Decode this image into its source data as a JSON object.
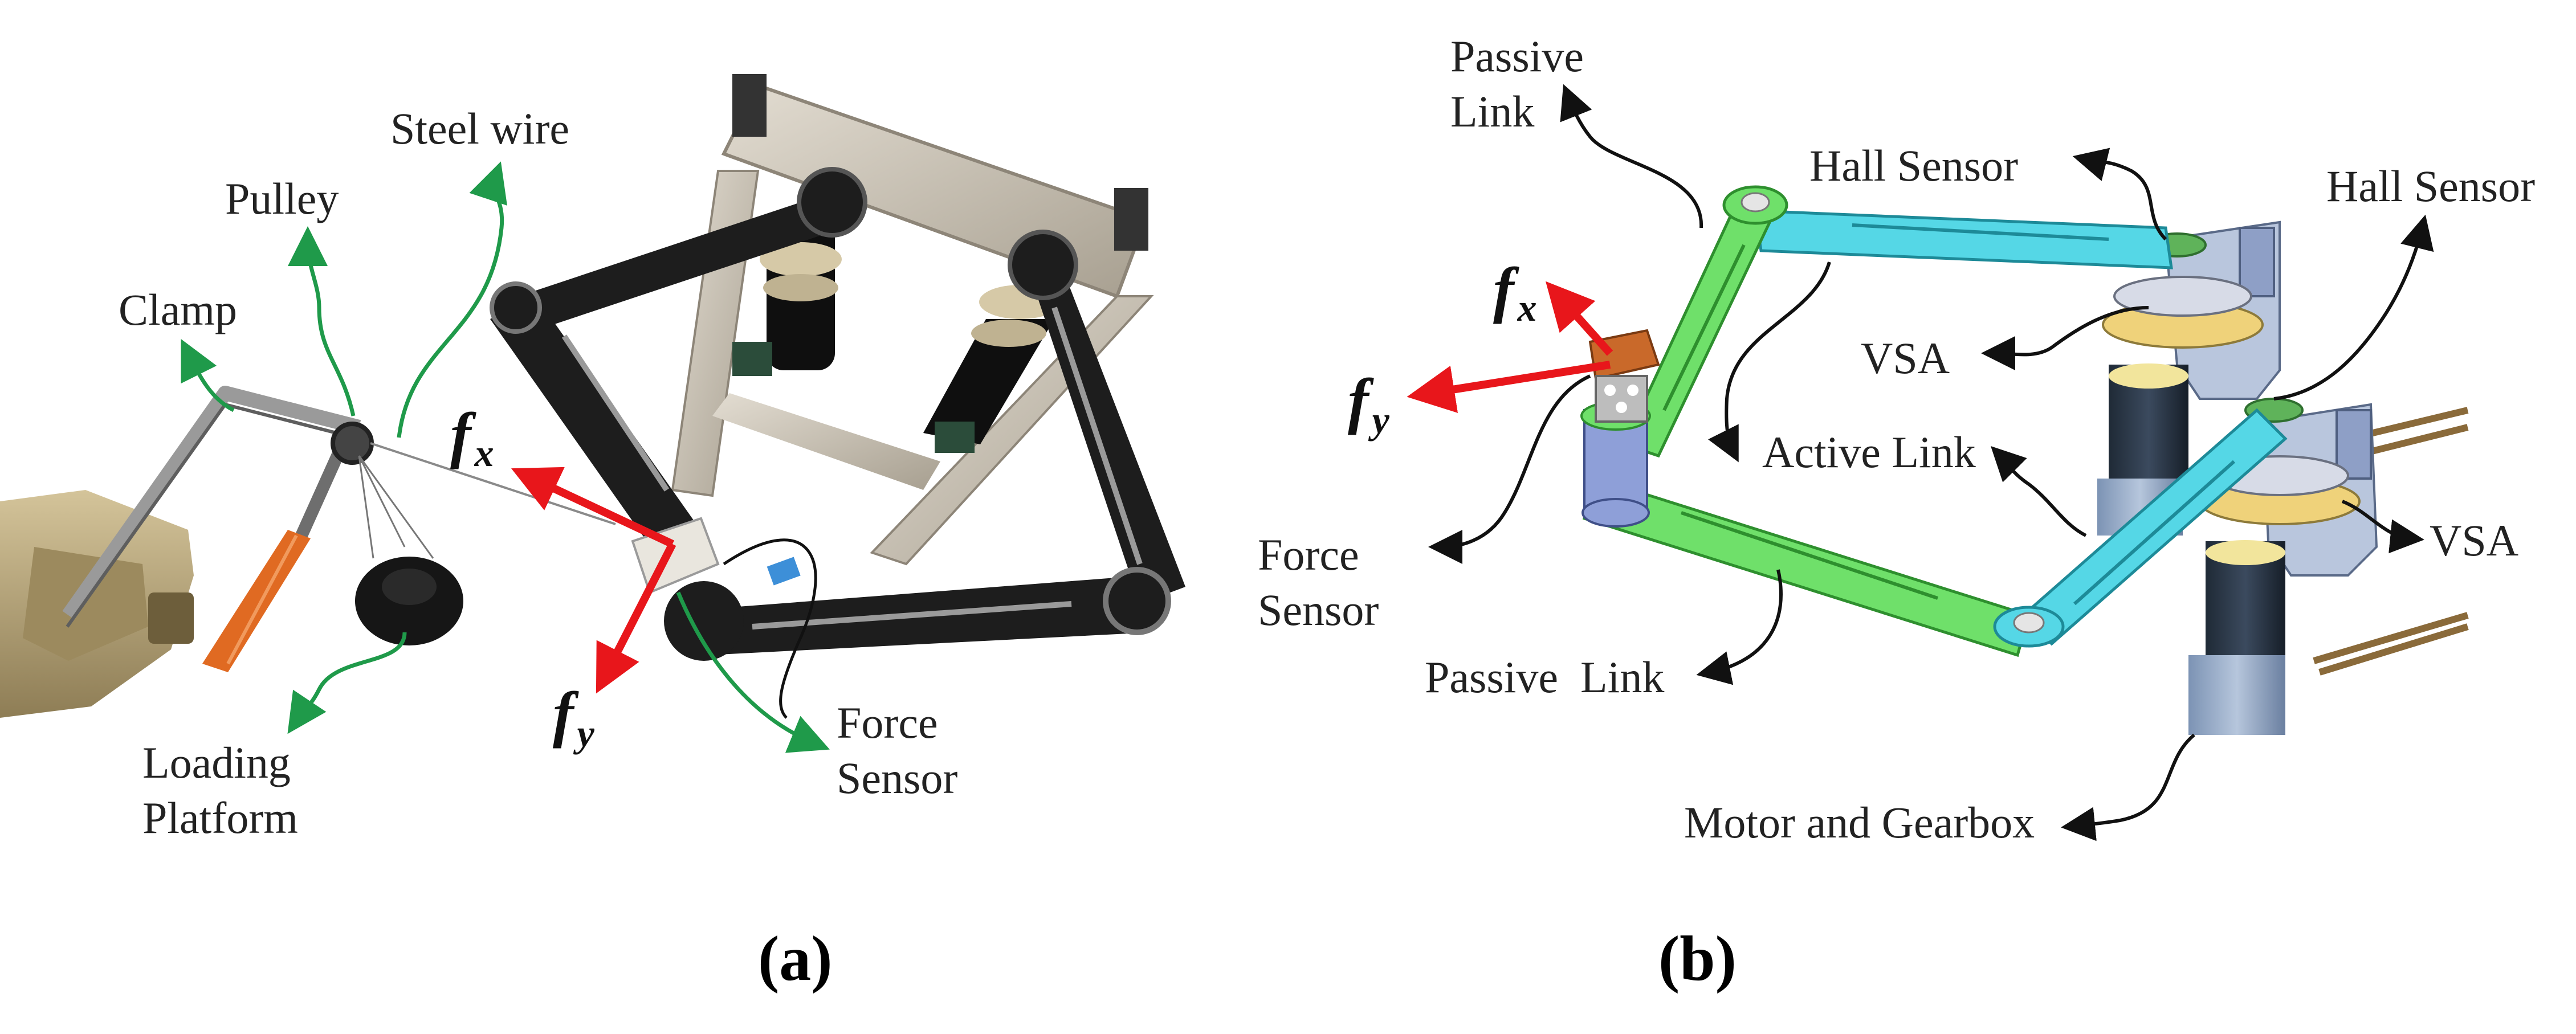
{
  "panel_a": {
    "caption": "(a)",
    "labels": {
      "steel_wire": "Steel wire",
      "pulley": "Pulley",
      "clamp": "Clamp",
      "loading_platform_1": "Loading",
      "loading_platform_2": "Platform",
      "force_sensor_1": "Force",
      "force_sensor_2": "Sensor"
    },
    "force_x": {
      "base": "f",
      "sub": "x"
    },
    "force_y": {
      "base": "f",
      "sub": "y"
    }
  },
  "panel_b": {
    "caption": "(b)",
    "labels": {
      "passive_link_top_1": "Passive",
      "passive_link_top_2": "Link",
      "hall_sensor_left": "Hall Sensor",
      "hall_sensor_right": "Hall Sensor",
      "vsa_left": "VSA",
      "vsa_right": "VSA",
      "active_link": "Active Link",
      "force_sensor_1": "Force",
      "force_sensor_2": "Sensor",
      "passive_link_bottom": "Passive  Link",
      "motor_gearbox": "Motor and Gearbox"
    },
    "force_x": {
      "base": "f",
      "sub": "x"
    },
    "force_y": {
      "base": "f",
      "sub": "y"
    }
  },
  "colors": {
    "green_arrow": "#1f9a4a",
    "black_arrow": "#111111",
    "force_red": "#e8161b",
    "link_cyan": "#55d7e6",
    "link_green": "#6fe06a",
    "frame_black": "#1d1d1d",
    "aluminum": "#c9c1b3"
  }
}
